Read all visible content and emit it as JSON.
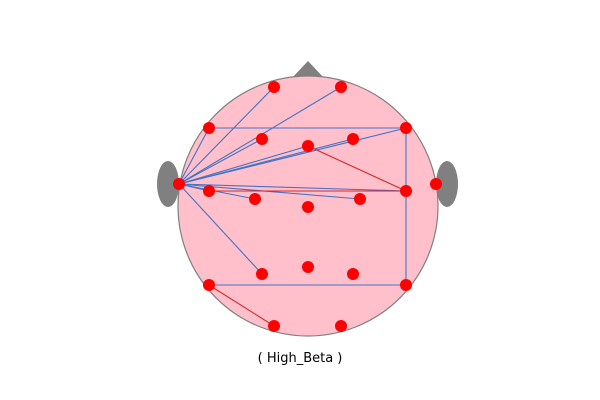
{
  "caption": "( High_Beta )",
  "colors": {
    "head_fill": "#ffc0cb",
    "head_outline": "#808080",
    "nose_ears": "#808080",
    "electrode": "#ff0000",
    "edge_positive": "#d62728",
    "edge_negative": "#4472c4"
  },
  "electrode_count": 21,
  "connections": [
    {
      "from": "left-temporal",
      "to": "frontal-left",
      "sign": "negative"
    },
    {
      "from": "left-temporal",
      "to": "frontal-right",
      "sign": "negative"
    },
    {
      "from": "left-temporal",
      "to": "frontal-lateral-left",
      "sign": "negative"
    },
    {
      "from": "left-temporal",
      "to": "frontal-mid-left",
      "sign": "negative"
    },
    {
      "from": "left-temporal",
      "to": "frontal-mid-right",
      "sign": "negative"
    },
    {
      "from": "left-temporal",
      "to": "frontal-center",
      "sign": "negative"
    },
    {
      "from": "left-temporal",
      "to": "frontal-lateral-right",
      "sign": "negative"
    },
    {
      "from": "left-temporal",
      "to": "central-left",
      "sign": "negative"
    },
    {
      "from": "left-temporal",
      "to": "central-mid-left",
      "sign": "negative"
    },
    {
      "from": "left-temporal",
      "to": "central-mid-right",
      "sign": "negative"
    },
    {
      "from": "left-temporal",
      "to": "temporal-right",
      "sign": "negative"
    },
    {
      "from": "left-temporal",
      "to": "parietal-mid-left",
      "sign": "negative"
    },
    {
      "from": "frontal-lateral-left",
      "to": "frontal-lateral-right",
      "sign": "negative"
    },
    {
      "from": "frontal-lateral-right",
      "to": "parietal-lateral-right",
      "sign": "negative"
    },
    {
      "from": "parietal-lateral-left",
      "to": "parietal-lateral-right",
      "sign": "negative"
    },
    {
      "from": "central-left",
      "to": "temporal-right",
      "sign": "positive"
    },
    {
      "from": "frontal-center",
      "to": "temporal-right",
      "sign": "positive"
    },
    {
      "from": "parietal-lateral-left",
      "to": "occipital-left",
      "sign": "positive"
    }
  ]
}
